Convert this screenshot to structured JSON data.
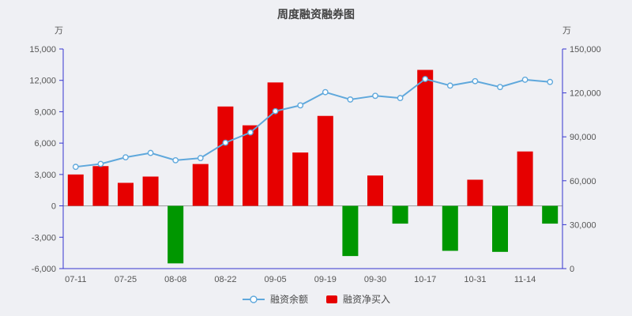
{
  "title": "周度融资融券图",
  "legend": [
    {
      "label": "融资余额",
      "color": "#5fa8dc"
    },
    {
      "label": "融资净买入",
      "color": "#e60000"
    }
  ],
  "chart_data": {
    "type": "bar+line",
    "title": "周度融资融券图",
    "x_tick_labels": [
      "07-11",
      "07-25",
      "08-08",
      "08-22",
      "09-05",
      "09-19",
      "09-30",
      "10-17",
      "10-31",
      "11-14"
    ],
    "x_tick_every_n_bars": 2,
    "left_axis": {
      "unit": "万",
      "min": -6000,
      "max": 15000,
      "ticks": [
        -6000,
        -3000,
        0,
        3000,
        6000,
        9000,
        12000,
        15000
      ]
    },
    "right_axis": {
      "unit": "万",
      "min": 0,
      "max": 150000,
      "ticks": [
        0,
        30000,
        60000,
        90000,
        120000,
        150000
      ]
    },
    "axis_color": "#3535cf",
    "zero_line_color": "#9a9a9a",
    "background_color": "#eff0f4",
    "series": [
      {
        "name": "融资净买入",
        "type": "bar",
        "axis": "left",
        "color_positive": "#e60000",
        "color_negative": "#009700",
        "values": [
          3000,
          3800,
          2200,
          2800,
          -5500,
          4000,
          9500,
          7700,
          11800,
          5100,
          8600,
          -4800,
          2900,
          -1700,
          13000,
          -4300,
          2500,
          -4400,
          5200,
          -1700
        ]
      },
      {
        "name": "融资余额",
        "type": "line",
        "axis": "right",
        "color": "#5fa8dc",
        "marker": "hollow-circle",
        "values": [
          69500,
          71500,
          76000,
          79000,
          74000,
          75500,
          86000,
          93000,
          107500,
          111500,
          120500,
          115500,
          118000,
          116500,
          129500,
          125000,
          128000,
          124000,
          129000,
          127500
        ]
      }
    ]
  }
}
